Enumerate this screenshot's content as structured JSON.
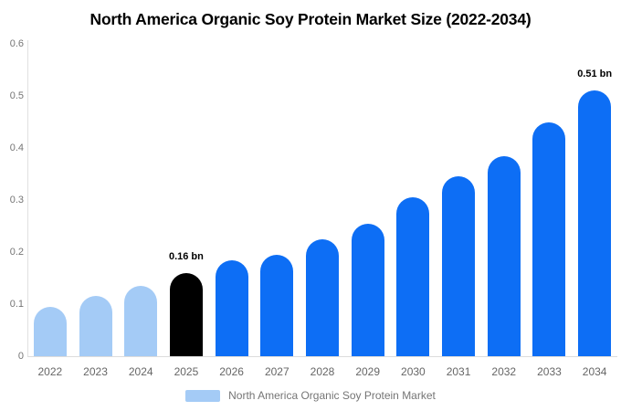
{
  "title": "North America Organic Soy Protein Market Size (2022-2034)",
  "colors": {
    "historical": "#a4cbf6",
    "base_year": "#000000",
    "forecast": "#0d6ef5",
    "axis_line": "#e0e0e0",
    "tick_text": "#757575"
  },
  "legend": {
    "label": "North America Organic Soy Protein Market",
    "swatch_color": "#a4cbf6"
  },
  "chart_data": {
    "type": "bar",
    "title": "North America Organic Soy Protein Market Size (2022-2034)",
    "series_name": "North America Organic Soy Protein Market",
    "categories": [
      "2022",
      "2023",
      "2024",
      "2025",
      "2026",
      "2027",
      "2028",
      "2029",
      "2030",
      "2031",
      "2032",
      "2033",
      "2034"
    ],
    "values": [
      0.095,
      0.115,
      0.135,
      0.16,
      0.185,
      0.195,
      0.225,
      0.255,
      0.305,
      0.345,
      0.385,
      0.45,
      0.51
    ],
    "unit": "bn",
    "bar_styles": [
      "historical",
      "historical",
      "historical",
      "base_year",
      "forecast",
      "forecast",
      "forecast",
      "forecast",
      "forecast",
      "forecast",
      "forecast",
      "forecast",
      "forecast"
    ],
    "point_labels": {
      "2025": "0.16 bn",
      "2034": "0.51 bn"
    },
    "xlabel": "",
    "ylabel": "",
    "ylim": [
      0,
      0.6
    ],
    "ytick_labels": [
      "0",
      "0.1",
      "0.2",
      "0.3",
      "0.4",
      "0.5",
      "0.6"
    ],
    "grid": false,
    "legend_position": "bottom"
  }
}
